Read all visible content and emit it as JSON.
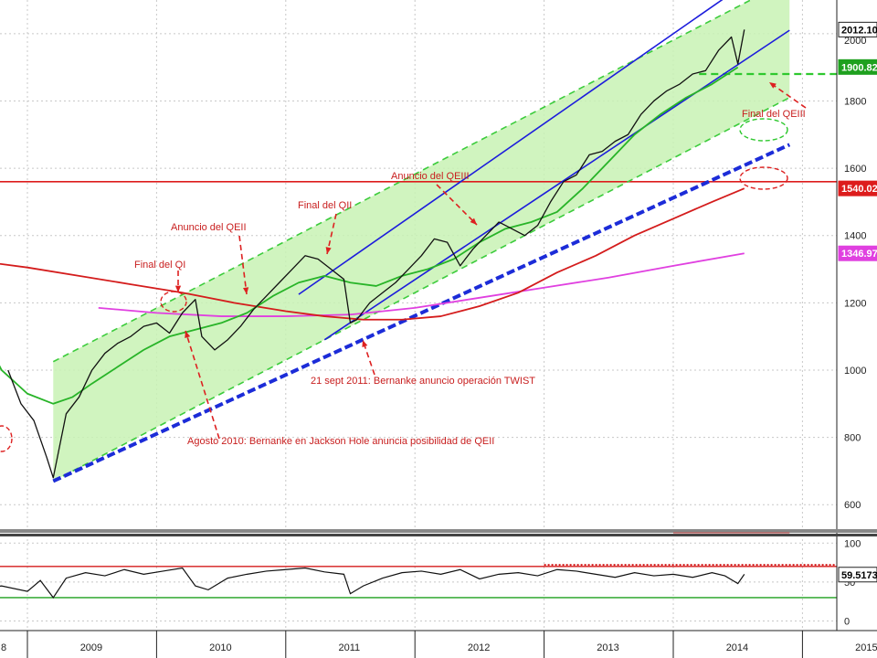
{
  "chart_data": [
    {
      "type": "line",
      "title": "",
      "xlabel": "",
      "ylabel": "",
      "x_ticks": [
        "2009",
        "2010",
        "2011",
        "2012",
        "2013",
        "2014",
        "2015"
      ],
      "x_tick_cut_left": "8",
      "y_ticks": [
        600,
        800,
        1000,
        1200,
        1400,
        1600,
        1800
      ],
      "y_tick_cut_top": "2000",
      "ylim": [
        530,
        2100
      ],
      "grid": true,
      "last_value_tags": [
        {
          "label": "2012.10",
          "value": 2012.1,
          "color": "#ffffff",
          "text_color": "#000000"
        },
        {
          "label": "1900.82",
          "value": 1900.82,
          "color": "#1ea01e",
          "text_color": "#ffffff"
        },
        {
          "label": "1540.02",
          "value": 1540.02,
          "color": "#dd1c1c",
          "text_color": "#ffffff"
        },
        {
          "label": "1346.97",
          "value": 1346.97,
          "color": "#e040e0",
          "text_color": "#ffffff"
        }
      ],
      "horizontal_levels": [
        {
          "value": 1560,
          "color": "#dd1c1c",
          "style": "solid"
        },
        {
          "value": 1880,
          "color": "#2ec82e",
          "style": "dashed"
        }
      ],
      "channel_upper_dashed": [
        [
          2009.2,
          1025
        ],
        [
          2014.9,
          2160
        ]
      ],
      "channel_lower_dashed": [
        [
          2009.2,
          670
        ],
        [
          2014.9,
          1810
        ]
      ],
      "trendline_blue_dashed": [
        [
          2009.2,
          670
        ],
        [
          2014.9,
          1670
        ]
      ],
      "blue_channel_upper": [
        [
          2011.1,
          1225
        ],
        [
          2014.6,
          2160
        ]
      ],
      "blue_channel_lower": [
        [
          2011.3,
          1090
        ],
        [
          2014.9,
          2010
        ]
      ],
      "series": [
        {
          "name": "",
          "color": "#111111",
          "x": [
            2008.85,
            2008.95,
            2009.05,
            2009.15,
            2009.2,
            2009.3,
            2009.4,
            2009.5,
            2009.6,
            2009.7,
            2009.8,
            2009.9,
            2010.0,
            2010.1,
            2010.2,
            2010.3,
            2010.35,
            2010.45,
            2010.55,
            2010.65,
            2010.75,
            2010.85,
            2010.95,
            2011.05,
            2011.15,
            2011.25,
            2011.35,
            2011.45,
            2011.5,
            2011.55,
            2011.65,
            2011.75,
            2011.85,
            2011.95,
            2012.05,
            2012.15,
            2012.25,
            2012.35,
            2012.45,
            2012.55,
            2012.65,
            2012.75,
            2012.85,
            2012.95,
            2013.05,
            2013.15,
            2013.25,
            2013.35,
            2013.45,
            2013.55,
            2013.65,
            2013.75,
            2013.85,
            2013.95,
            2014.05,
            2014.15,
            2014.25,
            2014.35,
            2014.45,
            2014.5,
            2014.55
          ],
          "values": [
            1000,
            900,
            850,
            740,
            680,
            870,
            920,
            1000,
            1050,
            1080,
            1100,
            1130,
            1140,
            1110,
            1170,
            1210,
            1100,
            1060,
            1090,
            1130,
            1180,
            1220,
            1260,
            1300,
            1340,
            1330,
            1300,
            1270,
            1140,
            1150,
            1200,
            1230,
            1260,
            1300,
            1340,
            1390,
            1380,
            1310,
            1360,
            1400,
            1440,
            1420,
            1400,
            1430,
            1500,
            1560,
            1580,
            1640,
            1650,
            1680,
            1700,
            1760,
            1800,
            1830,
            1850,
            1880,
            1890,
            1950,
            1990,
            1910,
            2012
          ]
        },
        {
          "name": "",
          "color": "#28b428",
          "x": [
            2008.4,
            2008.6,
            2008.8,
            2009.0,
            2009.2,
            2009.35,
            2009.5,
            2009.7,
            2009.9,
            2010.1,
            2010.3,
            2010.5,
            2010.7,
            2010.9,
            2011.1,
            2011.3,
            2011.5,
            2011.7,
            2011.9,
            2012.1,
            2012.3,
            2012.5,
            2012.7,
            2012.9,
            2013.1,
            2013.3,
            2013.5,
            2013.7,
            2013.9,
            2014.1,
            2014.3,
            2014.5
          ],
          "values": [
            1270,
            1150,
            1000,
            930,
            900,
            920,
            960,
            1010,
            1060,
            1100,
            1120,
            1140,
            1170,
            1220,
            1260,
            1280,
            1260,
            1250,
            1280,
            1300,
            1330,
            1380,
            1420,
            1440,
            1470,
            1540,
            1620,
            1700,
            1760,
            1810,
            1850,
            1900
          ]
        },
        {
          "name": "",
          "color": "#d41c1c",
          "x": [
            2008.7,
            2009.0,
            2009.4,
            2009.8,
            2010.2,
            2010.6,
            2011.0,
            2011.3,
            2011.6,
            2011.9,
            2012.2,
            2012.5,
            2012.8,
            2013.1,
            2013.4,
            2013.7,
            2014.0,
            2014.3,
            2014.55
          ],
          "values": [
            1320,
            1305,
            1280,
            1255,
            1230,
            1200,
            1175,
            1160,
            1150,
            1150,
            1160,
            1190,
            1230,
            1290,
            1340,
            1400,
            1450,
            1500,
            1540
          ]
        },
        {
          "name": "",
          "color": "#e040e0",
          "x": [
            2009.55,
            2010.0,
            2010.5,
            2011.0,
            2011.5,
            2012.0,
            2012.5,
            2013.0,
            2013.5,
            2014.0,
            2014.55
          ],
          "values": [
            1185,
            1170,
            1160,
            1160,
            1165,
            1185,
            1215,
            1245,
            1275,
            1310,
            1347
          ]
        }
      ],
      "annotations": [
        "Final del QI",
        "Anuncio del QEII",
        "Final del QII",
        "Anuncio del QEIII",
        "Final del QEIII",
        "21 sept 2011: Bernanke anuncio operación TWIST",
        "Agosto 2010: Bernanke en Jackson Hole anuncia posibilidad de QEII"
      ]
    },
    {
      "type": "line",
      "title": "",
      "xlabel": "",
      "ylabel": "",
      "y_ticks": [
        0,
        50,
        100
      ],
      "ylim": [
        -10,
        105
      ],
      "last_value_tags": [
        {
          "label": "59.5173",
          "value": 59.5173,
          "color": "#ffffff",
          "text_color": "#000000"
        }
      ],
      "horizontal_levels": [
        {
          "value": 70,
          "color": "#d41c1c",
          "style": "solid"
        },
        {
          "value": 30,
          "color": "#1ea01e",
          "style": "solid"
        }
      ],
      "series": [
        {
          "name": "",
          "color": "#111111",
          "x": [
            2008.6,
            2008.8,
            2009.0,
            2009.1,
            2009.2,
            2009.3,
            2009.45,
            2009.6,
            2009.75,
            2009.9,
            2010.05,
            2010.2,
            2010.3,
            2010.4,
            2010.55,
            2010.7,
            2010.85,
            2011.0,
            2011.15,
            2011.3,
            2011.45,
            2011.5,
            2011.6,
            2011.75,
            2011.9,
            2012.05,
            2012.2,
            2012.35,
            2012.5,
            2012.65,
            2012.8,
            2012.95,
            2013.1,
            2013.25,
            2013.4,
            2013.55,
            2013.7,
            2013.85,
            2014.0,
            2014.15,
            2014.3,
            2014.4,
            2014.5,
            2014.55
          ],
          "values": [
            40,
            45,
            38,
            52,
            30,
            55,
            62,
            58,
            66,
            60,
            64,
            68,
            45,
            40,
            55,
            60,
            64,
            66,
            68,
            63,
            60,
            35,
            45,
            55,
            62,
            64,
            60,
            66,
            54,
            60,
            62,
            58,
            66,
            64,
            60,
            56,
            62,
            58,
            60,
            56,
            62,
            58,
            48,
            60
          ]
        }
      ]
    }
  ]
}
